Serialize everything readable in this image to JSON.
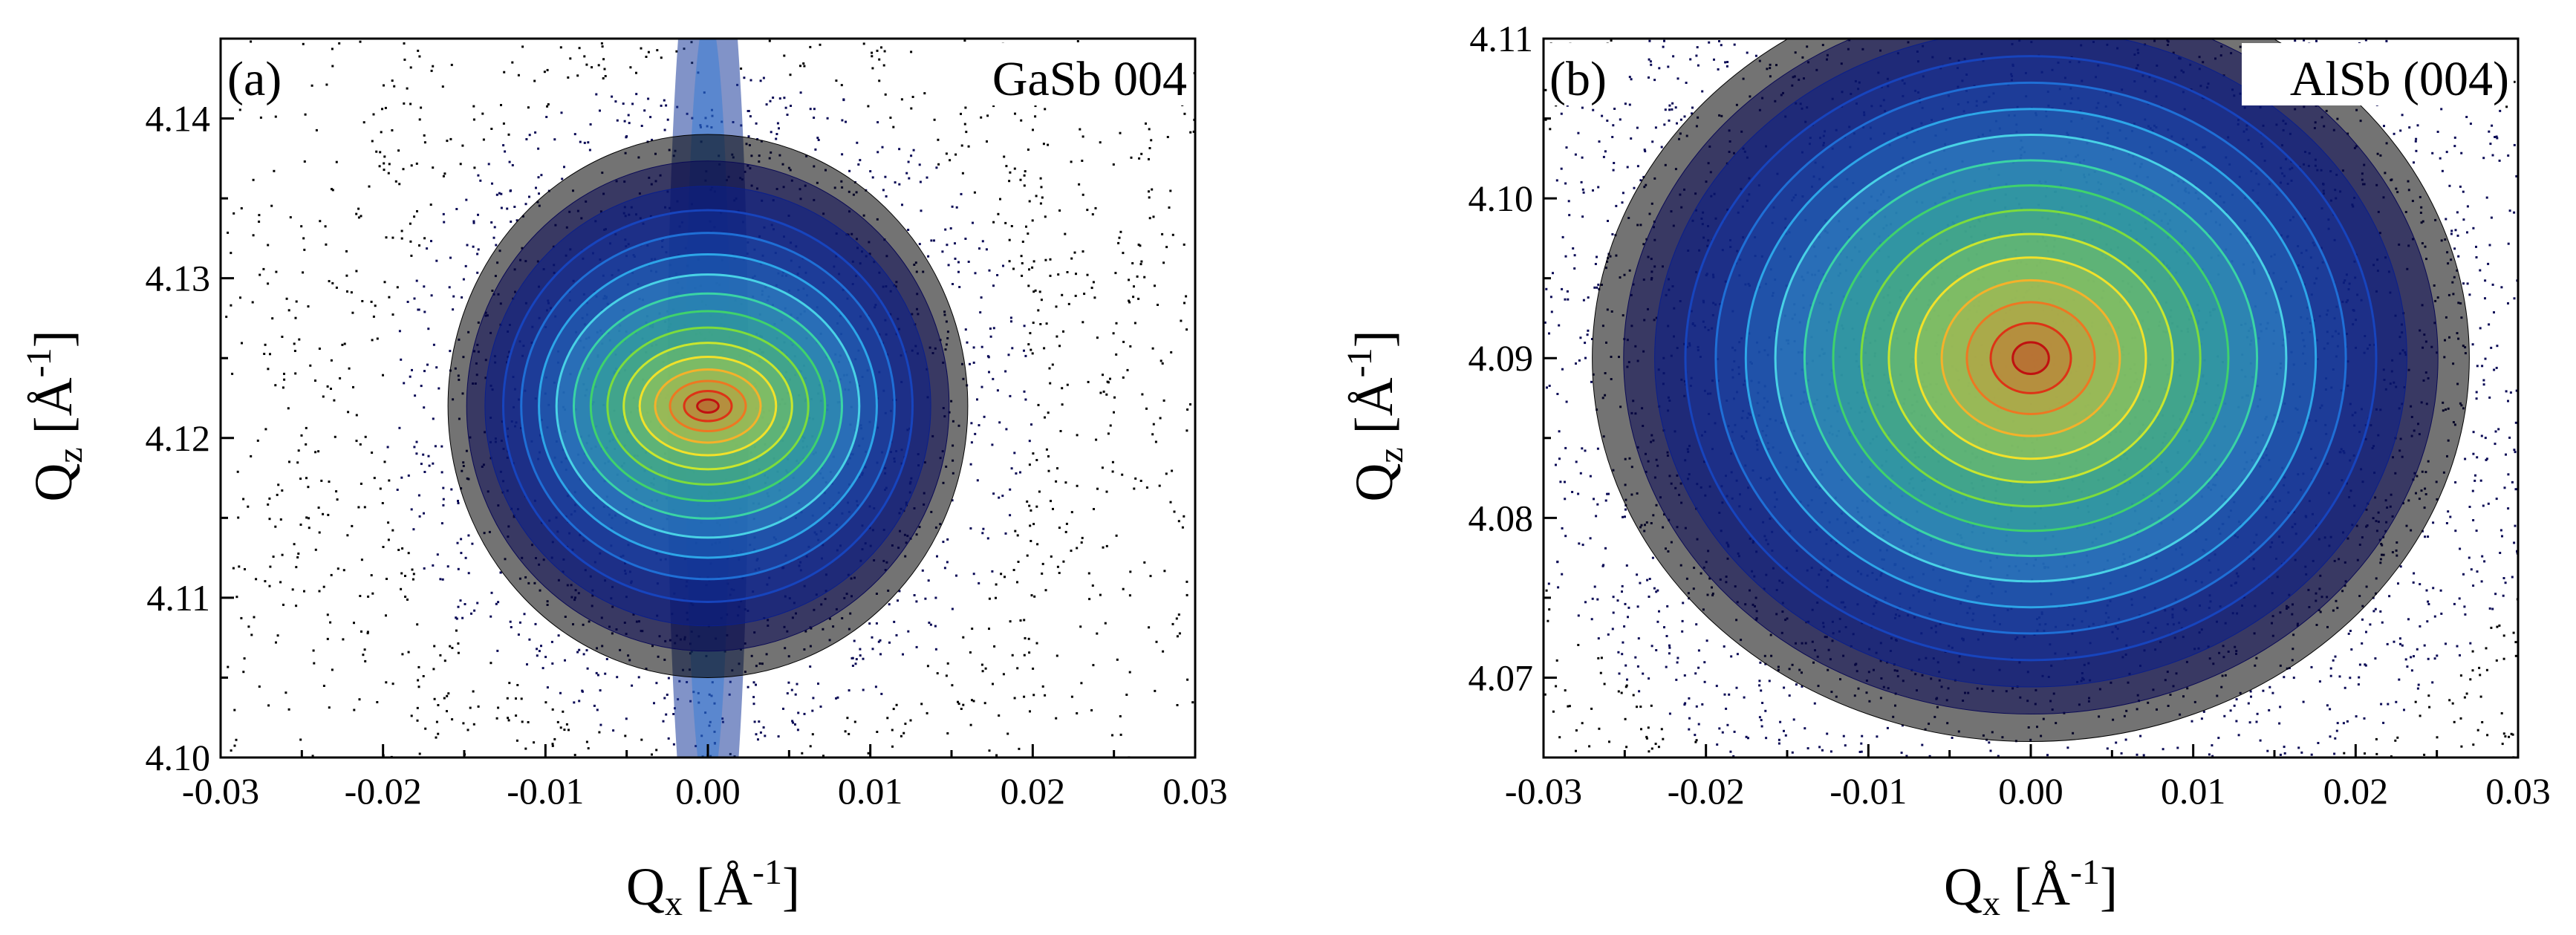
{
  "colors": {
    "ring_palette": [
      "#000000",
      "#0a0a55",
      "#0b1f8a",
      "#1744bd",
      "#1f6fd6",
      "#2da6e8",
      "#49d2e6",
      "#3ad4a5",
      "#3fd26c",
      "#7ddc3c",
      "#c9e62e",
      "#f2e12a",
      "#f5b12a",
      "#ee7722",
      "#dd3316",
      "#c01010"
    ],
    "frame": "#000000",
    "label_bg": "#ffffff"
  },
  "chart_data": [
    {
      "type": "heatmap",
      "panel_label": "(a)",
      "annotation": "GaSb 004",
      "xlabel": "Qx [Å-1]",
      "ylabel": "Qz [Å-1]",
      "xlim": [
        -0.03,
        0.03
      ],
      "ylim": [
        4.1,
        4.145
      ],
      "xticks": [
        -0.03,
        -0.02,
        -0.01,
        0.0,
        0.01,
        0.02,
        0.03
      ],
      "xtick_labels": [
        "-0.03",
        "-0.02",
        "-0.01",
        "0.00",
        "0.01",
        "0.02",
        "0.03"
      ],
      "yticks": [
        4.1,
        4.11,
        4.12,
        4.13,
        4.14
      ],
      "ytick_labels": [
        "4.10",
        "4.11",
        "4.12",
        "4.13",
        "4.14"
      ],
      "peak": {
        "qx": 0.0,
        "qz": 4.122
      },
      "ring_count": 16,
      "extent_x": 0.016,
      "extent_z": 0.017,
      "streak_width_x": 0.0025,
      "grid": false
    },
    {
      "type": "heatmap",
      "panel_label": "(b)",
      "annotation": "AlSb (004)",
      "xlabel": "Qx [Å-1]",
      "ylabel": "Qz [Å-1]",
      "xlim": [
        -0.03,
        0.03
      ],
      "ylim": [
        4.065,
        4.11
      ],
      "xticks": [
        -0.03,
        -0.02,
        -0.01,
        0.0,
        0.01,
        0.02,
        0.03
      ],
      "xtick_labels": [
        "-0.03",
        "-0.02",
        "-0.01",
        "0.00",
        "0.01",
        "0.02",
        "0.03"
      ],
      "yticks": [
        4.07,
        4.08,
        4.09,
        4.1,
        4.11
      ],
      "ytick_labels": [
        "4.07",
        "4.08",
        "4.09",
        "4.10",
        "4.11"
      ],
      "peak": {
        "qx": 0.0,
        "qz": 4.09
      },
      "ring_count": 16,
      "extent_x": 0.027,
      "extent_z": 0.024,
      "streak_width_x": 0.0,
      "grid": false
    }
  ]
}
